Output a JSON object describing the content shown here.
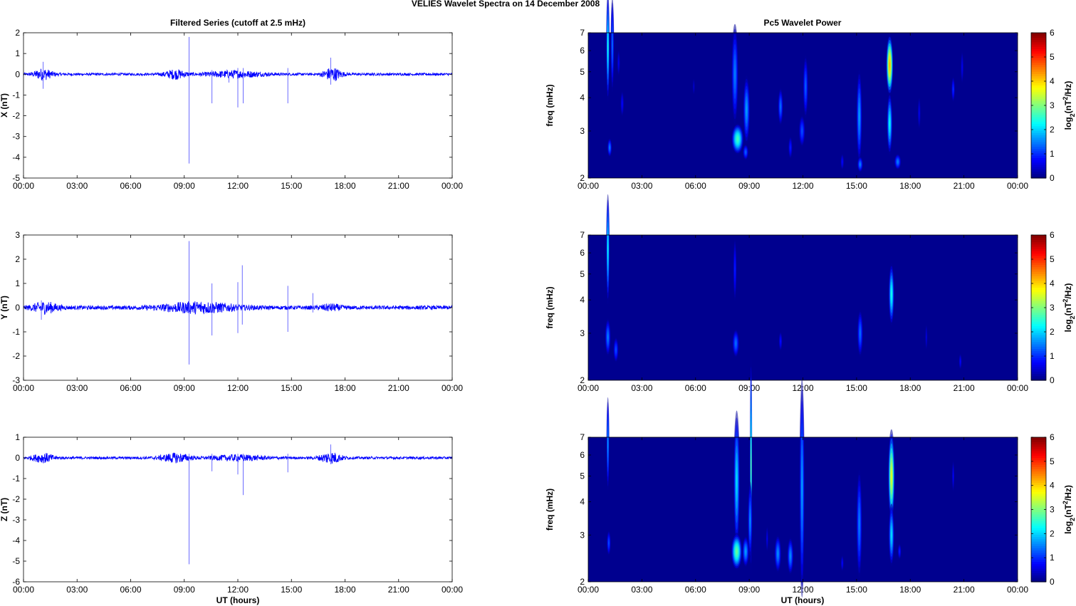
{
  "figure": {
    "title": "VELIES Wavelet Spectra on 14 December  2008",
    "left_column_title": "Filtered Series (cutoff at 2.5 mHz)",
    "right_column_title": "Pc5 Wavelet Power",
    "xlabel": "UT (hours)"
  },
  "chart_data": [
    {
      "type": "line",
      "panel": "X",
      "ylabel": "X (nT)",
      "x_range_hours": [
        0,
        24
      ],
      "x_ticks": [
        "00:00",
        "03:00",
        "06:00",
        "09:00",
        "12:00",
        "15:00",
        "18:00",
        "21:00",
        "00:00"
      ],
      "ylim": [
        -5,
        2
      ],
      "y_ticks": [
        -5,
        -4,
        -3,
        -2,
        -1,
        0,
        1,
        2
      ],
      "series_color": "#0000ff",
      "noise_amplitude": 0.06,
      "bursts": [
        {
          "t": 1.1,
          "amp": 0.25,
          "width": 0.5
        },
        {
          "t": 8.5,
          "amp": 0.2,
          "width": 0.6
        },
        {
          "t": 11.8,
          "amp": 0.15,
          "width": 1.5
        },
        {
          "t": 17.3,
          "amp": 0.3,
          "width": 0.5
        }
      ],
      "spikes": [
        {
          "t": 9.27,
          "min": -4.3,
          "max": 1.8
        },
        {
          "t": 10.55,
          "min": -1.4,
          "max": 0.2
        },
        {
          "t": 11.5,
          "min": -0.4,
          "max": 0.1
        },
        {
          "t": 12.0,
          "min": -1.6,
          "max": 0.3
        },
        {
          "t": 12.3,
          "min": -1.4,
          "max": 0.3
        },
        {
          "t": 14.8,
          "min": -1.4,
          "max": 0.3
        },
        {
          "t": 17.2,
          "min": -0.5,
          "max": 0.8
        },
        {
          "t": 1.1,
          "min": -0.7,
          "max": 0.6
        }
      ]
    },
    {
      "type": "line",
      "panel": "Y",
      "ylabel": "Y (nT)",
      "x_range_hours": [
        0,
        24
      ],
      "x_ticks": [
        "00:00",
        "03:00",
        "06:00",
        "09:00",
        "12:00",
        "15:00",
        "18:00",
        "21:00",
        "00:00"
      ],
      "ylim": [
        -3,
        3
      ],
      "y_ticks": [
        -3,
        -2,
        -1,
        0,
        1,
        2,
        3
      ],
      "series_color": "#0000ff",
      "noise_amplitude": 0.08,
      "bursts": [
        {
          "t": 1.2,
          "amp": 0.2,
          "width": 0.7
        },
        {
          "t": 9.8,
          "amp": 0.2,
          "width": 2.0
        },
        {
          "t": 17.2,
          "amp": 0.1,
          "width": 0.6
        }
      ],
      "spikes": [
        {
          "t": 9.27,
          "min": -2.35,
          "max": 2.75
        },
        {
          "t": 10.55,
          "min": -1.15,
          "max": 1.0
        },
        {
          "t": 12.0,
          "min": -1.05,
          "max": 1.05
        },
        {
          "t": 12.25,
          "min": -0.7,
          "max": 1.75
        },
        {
          "t": 14.8,
          "min": -1.0,
          "max": 0.9
        },
        {
          "t": 16.2,
          "min": -0.2,
          "max": 0.6
        },
        {
          "t": 1.0,
          "min": -0.5,
          "max": 0.3
        }
      ]
    },
    {
      "type": "line",
      "panel": "Z",
      "ylabel": "Z (nT)",
      "x_range_hours": [
        0,
        24
      ],
      "x_ticks": [
        "00:00",
        "03:00",
        "06:00",
        "09:00",
        "12:00",
        "15:00",
        "18:00",
        "21:00",
        "00:00"
      ],
      "ylim": [
        -6,
        1
      ],
      "y_ticks": [
        -6,
        -5,
        -4,
        -3,
        -2,
        -1,
        0,
        1
      ],
      "series_color": "#0000ff",
      "noise_amplitude": 0.06,
      "bursts": [
        {
          "t": 1.1,
          "amp": 0.2,
          "width": 0.6
        },
        {
          "t": 8.5,
          "amp": 0.2,
          "width": 0.8
        },
        {
          "t": 12.0,
          "amp": 0.12,
          "width": 1.5
        },
        {
          "t": 17.2,
          "amp": 0.25,
          "width": 0.6
        }
      ],
      "spikes": [
        {
          "t": 9.27,
          "min": -5.15,
          "max": 0.2
        },
        {
          "t": 10.55,
          "min": -0.65,
          "max": 0.2
        },
        {
          "t": 12.0,
          "min": -0.8,
          "max": 0.2
        },
        {
          "t": 12.3,
          "min": -1.8,
          "max": 0.2
        },
        {
          "t": 14.8,
          "min": -0.7,
          "max": 0.2
        },
        {
          "t": 17.2,
          "min": -0.3,
          "max": 0.65
        }
      ]
    },
    {
      "type": "heatmap",
      "panel": "X",
      "ylabel": "freq (mHz)",
      "y_scale": "log",
      "ylim_mhz": [
        2,
        7
      ],
      "y_ticks": [
        2,
        3,
        4,
        5,
        6,
        7
      ],
      "x_range_hours": [
        0,
        24
      ],
      "x_ticks": [
        "00:00",
        "03:00",
        "06:00",
        "09:00",
        "12:00",
        "15:00",
        "18:00",
        "21:00",
        "00:00"
      ],
      "colorbar": {
        "range": [
          0,
          6
        ],
        "ticks": [
          0,
          1,
          2,
          3,
          4,
          5,
          6
        ],
        "label_base": "log",
        "label_sub": "2",
        "label_unit": "(nT",
        "label_sup": "2",
        "label_end": "/Hz)"
      },
      "blobs": [
        {
          "t": 1.1,
          "f": 6.2,
          "dt": 0.06,
          "df": 0.35,
          "peak": 2.3
        },
        {
          "t": 1.35,
          "f": 6.3,
          "dt": 0.06,
          "df": 0.3,
          "peak": 1.3
        },
        {
          "t": 1.2,
          "f": 2.6,
          "dt": 0.08,
          "df": 0.06,
          "peak": 1.4
        },
        {
          "t": 1.9,
          "f": 3.8,
          "dt": 0.06,
          "df": 0.08,
          "peak": 0.6
        },
        {
          "t": 8.2,
          "f": 4.9,
          "dt": 0.12,
          "df": 0.32,
          "peak": 1.4
        },
        {
          "t": 8.35,
          "f": 2.8,
          "dt": 0.22,
          "df": 0.1,
          "peak": 2.6
        },
        {
          "t": 8.85,
          "f": 3.6,
          "dt": 0.12,
          "df": 0.22,
          "peak": 1.6
        },
        {
          "t": 8.8,
          "f": 2.5,
          "dt": 0.1,
          "df": 0.05,
          "peak": 1.2
        },
        {
          "t": 10.75,
          "f": 3.7,
          "dt": 0.09,
          "df": 0.12,
          "peak": 1.3
        },
        {
          "t": 11.3,
          "f": 2.6,
          "dt": 0.07,
          "df": 0.07,
          "peak": 0.8
        },
        {
          "t": 11.95,
          "f": 3.0,
          "dt": 0.11,
          "df": 0.1,
          "peak": 1.1
        },
        {
          "t": 12.15,
          "f": 4.4,
          "dt": 0.09,
          "df": 0.2,
          "peak": 1.2
        },
        {
          "t": 14.2,
          "f": 2.3,
          "dt": 0.06,
          "df": 0.05,
          "peak": 0.6
        },
        {
          "t": 15.15,
          "f": 3.4,
          "dt": 0.1,
          "df": 0.3,
          "peak": 1.6
        },
        {
          "t": 15.2,
          "f": 2.25,
          "dt": 0.1,
          "df": 0.05,
          "peak": 1.4
        },
        {
          "t": 16.85,
          "f": 5.3,
          "dt": 0.13,
          "df": 0.2,
          "peak": 4.2
        },
        {
          "t": 16.85,
          "f": 3.2,
          "dt": 0.1,
          "df": 0.2,
          "peak": 2.2
        },
        {
          "t": 17.3,
          "f": 2.3,
          "dt": 0.12,
          "df": 0.05,
          "peak": 1.4
        },
        {
          "t": 18.5,
          "f": 3.5,
          "dt": 0.05,
          "df": 0.1,
          "peak": 0.5
        },
        {
          "t": 20.4,
          "f": 4.3,
          "dt": 0.06,
          "df": 0.08,
          "peak": 0.9
        },
        {
          "t": 20.9,
          "f": 5.2,
          "dt": 0.05,
          "df": 0.1,
          "peak": 0.5
        },
        {
          "t": 5.9,
          "f": 4.4,
          "dt": 0.04,
          "df": 0.05,
          "peak": 0.3
        },
        {
          "t": 1.7,
          "f": 5.4,
          "dt": 0.05,
          "df": 0.08,
          "peak": 0.5
        }
      ]
    },
    {
      "type": "heatmap",
      "panel": "Y",
      "ylabel": "freq (mHz)",
      "y_scale": "log",
      "ylim_mhz": [
        2,
        7
      ],
      "y_ticks": [
        2,
        3,
        4,
        5,
        6,
        7
      ],
      "x_range_hours": [
        0,
        24
      ],
      "x_ticks": [
        "00:00",
        "03:00",
        "06:00",
        "09:00",
        "12:00",
        "15:00",
        "18:00",
        "21:00",
        "00:00"
      ],
      "colorbar": {
        "range": [
          0,
          6
        ],
        "ticks": [
          0,
          1,
          2,
          3,
          4,
          5,
          6
        ],
        "label_base": "log",
        "label_sub": "2",
        "label_unit": "(nT",
        "label_sup": "2",
        "label_end": "/Hz)"
      },
      "blobs": [
        {
          "t": 1.1,
          "f": 6.2,
          "dt": 0.06,
          "df": 0.35,
          "peak": 2.2
        },
        {
          "t": 1.1,
          "f": 2.9,
          "dt": 0.1,
          "df": 0.12,
          "peak": 1.4
        },
        {
          "t": 1.55,
          "f": 2.6,
          "dt": 0.09,
          "df": 0.08,
          "peak": 1.1
        },
        {
          "t": 8.2,
          "f": 5.2,
          "dt": 0.06,
          "df": 0.2,
          "peak": 0.8
        },
        {
          "t": 8.25,
          "f": 2.75,
          "dt": 0.12,
          "df": 0.09,
          "peak": 1.3
        },
        {
          "t": 10.75,
          "f": 2.8,
          "dt": 0.06,
          "df": 0.06,
          "peak": 0.7
        },
        {
          "t": 15.2,
          "f": 3.0,
          "dt": 0.1,
          "df": 0.15,
          "peak": 1.3
        },
        {
          "t": 16.95,
          "f": 4.2,
          "dt": 0.1,
          "df": 0.2,
          "peak": 2.3
        },
        {
          "t": 18.9,
          "f": 2.9,
          "dt": 0.04,
          "df": 0.08,
          "peak": 0.4
        },
        {
          "t": 20.8,
          "f": 2.35,
          "dt": 0.05,
          "df": 0.05,
          "peak": 0.6
        }
      ]
    },
    {
      "type": "heatmap",
      "panel": "Z",
      "ylabel": "freq (mHz)",
      "y_scale": "log",
      "ylim_mhz": [
        2,
        7
      ],
      "y_ticks": [
        2,
        3,
        4,
        5,
        6,
        7
      ],
      "x_range_hours": [
        0,
        24
      ],
      "x_ticks": [
        "00:00",
        "03:00",
        "06:00",
        "09:00",
        "12:00",
        "15:00",
        "18:00",
        "21:00",
        "00:00"
      ],
      "colorbar": {
        "range": [
          0,
          6
        ],
        "ticks": [
          0,
          1,
          2,
          3,
          4,
          5,
          6
        ],
        "label_base": "log",
        "label_sub": "2",
        "label_unit": "(nT",
        "label_sup": "2",
        "label_end": "/Hz)"
      },
      "blobs": [
        {
          "t": 1.1,
          "f": 6.6,
          "dt": 0.05,
          "df": 0.3,
          "peak": 1.6
        },
        {
          "t": 1.15,
          "f": 2.8,
          "dt": 0.07,
          "df": 0.08,
          "peak": 1.1
        },
        {
          "t": 8.3,
          "f": 4.8,
          "dt": 0.11,
          "df": 0.45,
          "peak": 2.0
        },
        {
          "t": 8.3,
          "f": 2.6,
          "dt": 0.2,
          "df": 0.12,
          "peak": 2.8
        },
        {
          "t": 8.8,
          "f": 2.6,
          "dt": 0.12,
          "df": 0.1,
          "peak": 1.6
        },
        {
          "t": 9.1,
          "f": 5.5,
          "dt": 0.04,
          "df": 0.7,
          "peak": 2.8
        },
        {
          "t": 9.05,
          "f": 3.4,
          "dt": 0.08,
          "df": 0.25,
          "peak": 1.5
        },
        {
          "t": 10.6,
          "f": 2.55,
          "dt": 0.12,
          "df": 0.12,
          "peak": 1.5
        },
        {
          "t": 11.3,
          "f": 2.5,
          "dt": 0.11,
          "df": 0.12,
          "peak": 1.5
        },
        {
          "t": 11.95,
          "f": 4.5,
          "dt": 0.09,
          "df": 0.7,
          "peak": 1.6
        },
        {
          "t": 14.2,
          "f": 2.35,
          "dt": 0.05,
          "df": 0.05,
          "peak": 0.6
        },
        {
          "t": 15.15,
          "f": 3.3,
          "dt": 0.1,
          "df": 0.35,
          "peak": 1.4
        },
        {
          "t": 16.95,
          "f": 5.0,
          "dt": 0.12,
          "df": 0.3,
          "peak": 3.6
        },
        {
          "t": 16.95,
          "f": 3.0,
          "dt": 0.1,
          "df": 0.2,
          "peak": 2.0
        },
        {
          "t": 17.4,
          "f": 2.6,
          "dt": 0.06,
          "df": 0.05,
          "peak": 0.8
        },
        {
          "t": 20.4,
          "f": 5.0,
          "dt": 0.04,
          "df": 0.1,
          "peak": 0.6
        },
        {
          "t": 10.0,
          "f": 2.9,
          "dt": 0.04,
          "df": 0.08,
          "peak": 0.5
        }
      ]
    }
  ]
}
